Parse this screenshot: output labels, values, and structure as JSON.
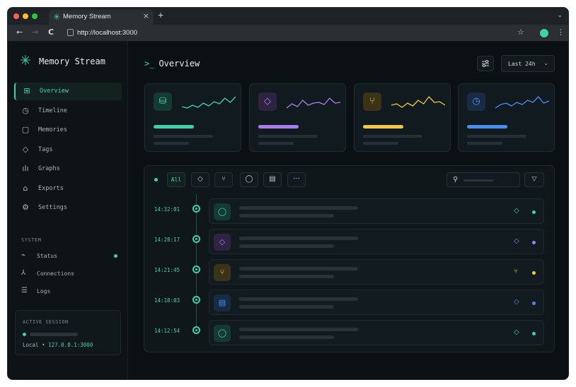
{
  "browser": {
    "tab_title": "Memory Stream",
    "tab_close": "×",
    "new_tab": "+",
    "tab_menu": "⌄",
    "back": "←",
    "forward": "→",
    "reload": "C",
    "url": "http://localhost:3000",
    "bookmark": "☆",
    "menu": "⋮"
  },
  "colors": {
    "accent": "#3fd0b0",
    "purple": "#a77ef0",
    "yellow": "#f2c744",
    "blue": "#4a8ff0"
  },
  "sidebar": {
    "app_name": "Memory Stream",
    "logo_icon": "✳",
    "items": [
      {
        "label": "Overview",
        "icon": "⊞",
        "icon_name": "grid-icon",
        "active": true
      },
      {
        "label": "Timeline",
        "icon": "◷",
        "icon_name": "clock-icon",
        "active": false
      },
      {
        "label": "Memories",
        "icon": "▢",
        "icon_name": "message-square-icon",
        "active": false
      },
      {
        "label": "Tags",
        "icon": "◇",
        "icon_name": "tag-icon",
        "active": false
      },
      {
        "label": "Graphs",
        "icon": "ılı",
        "icon_name": "bar-chart-icon",
        "active": false
      },
      {
        "label": "Exports",
        "icon": "⌂",
        "icon_name": "export-icon",
        "active": false
      },
      {
        "label": "Settings",
        "icon": "⚙",
        "icon_name": "gear-icon",
        "active": false
      }
    ],
    "system_label": "SYSTEM",
    "system_items": [
      {
        "label": "Status",
        "icon": "⌁",
        "icon_name": "activity-icon"
      },
      {
        "label": "Connections",
        "icon": "⅄",
        "icon_name": "connections-icon"
      },
      {
        "label": "Logs",
        "icon": "☰",
        "icon_name": "logs-icon"
      }
    ],
    "session": {
      "title": "ACTIVE SESSION",
      "local_label": "Local",
      "separator": "•",
      "address": "127.0.0.1:3000"
    }
  },
  "main": {
    "prompt": ">_",
    "title": "Overview",
    "range": "Last 24h",
    "range_chevron": "⌄",
    "filter_icon": "≡"
  },
  "cards": [
    {
      "icon": "⛁",
      "icon_name": "database-icon",
      "color": "#3fd0b0",
      "bg": "#143a33",
      "spark": [
        18,
        20,
        16,
        19,
        13,
        17,
        11,
        14,
        6,
        12,
        4
      ]
    },
    {
      "icon": "◇",
      "icon_name": "tag-icon",
      "color": "#a77ef0",
      "bg": "#2e2442",
      "spark": [
        20,
        14,
        18,
        9,
        16,
        13,
        12,
        15,
        6,
        13,
        12
      ]
    },
    {
      "icon": "⑂",
      "icon_name": "branch-icon",
      "color": "#f2c744",
      "bg": "#3a3318",
      "spark": [
        16,
        14,
        19,
        13,
        17,
        9,
        14,
        4,
        12,
        11,
        16
      ]
    },
    {
      "icon": "◷",
      "icon_name": "clock-icon",
      "color": "#4a8ff0",
      "bg": "#172c44",
      "spark": [
        20,
        15,
        13,
        17,
        12,
        15,
        9,
        12,
        4,
        13,
        10
      ]
    }
  ],
  "feed": {
    "filters": [
      {
        "label": "All",
        "icon_name": "all-filter"
      },
      {
        "label": "◇",
        "icon_name": "tag-icon"
      },
      {
        "label": "⑂",
        "icon_name": "branch-icon"
      },
      {
        "label": "◯",
        "icon_name": "message-icon"
      },
      {
        "label": "▤",
        "icon_name": "file-icon"
      },
      {
        "label": "···",
        "icon_name": "more-icon"
      }
    ],
    "search_icon": "⚲",
    "funnel_icon": "▽",
    "events": [
      {
        "time": "14:32:01",
        "icon": "◯",
        "icon_name": "message-icon",
        "color": "#3fd0b0",
        "bg": "#143a33",
        "tag_color": "#3fd0b0"
      },
      {
        "time": "14:28:17",
        "icon": "◇",
        "icon_name": "tag-icon",
        "color": "#a77ef0",
        "bg": "#2e2442",
        "tag_color": "#a77ef0"
      },
      {
        "time": "14:21:45",
        "icon": "⑂",
        "icon_name": "branch-icon",
        "color": "#f2c744",
        "bg": "#3a3318",
        "tag_color": "#f2c744"
      },
      {
        "time": "14:18:03",
        "icon": "▤",
        "icon_name": "file-icon",
        "color": "#4a8ff0",
        "bg": "#172c44",
        "tag_color": "#4a8ff0"
      },
      {
        "time": "14:12:54",
        "icon": "◯",
        "icon_name": "message-icon",
        "color": "#3fd0b0",
        "bg": "#143a33",
        "tag_color": "#3fd0b0"
      }
    ]
  }
}
